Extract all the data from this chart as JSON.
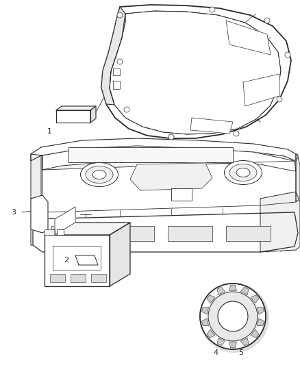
{
  "background_color": "#ffffff",
  "line_color": "#2a2a2a",
  "label_color": "#000000",
  "fig_width": 4.38,
  "fig_height": 5.33,
  "dpi": 100
}
